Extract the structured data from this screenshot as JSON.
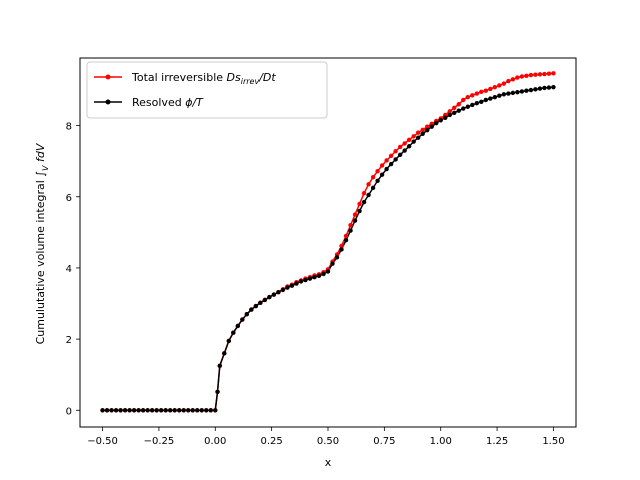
{
  "chart_data": {
    "type": "line",
    "xlabel": "x",
    "ylabel": "Cumulutative volume integral ∫V fdV",
    "ylabel_parts": {
      "main": "Cumulutative volume integral ∫",
      "sub": "V",
      "tail": " fdV"
    },
    "xlim": [
      -0.6,
      1.6
    ],
    "ylim": [
      -0.47,
      9.9
    ],
    "xticks": [
      -0.5,
      -0.25,
      0.0,
      0.25,
      0.5,
      0.75,
      1.0,
      1.25,
      1.5
    ],
    "xtick_labels": [
      "−0.50",
      "−0.25",
      "0.00",
      "0.25",
      "0.50",
      "0.75",
      "1.00",
      "1.25",
      "1.50"
    ],
    "yticks": [
      0,
      2,
      4,
      6,
      8
    ],
    "ytick_labels": [
      "0",
      "2",
      "4",
      "6",
      "8"
    ],
    "grid": false,
    "legend_position": "top-left",
    "series": [
      {
        "name": "Total irreversible Dsirrev/Dt",
        "label_parts": {
          "main": "Total irreversible ",
          "italic1": "Ds",
          "sub": "irrev",
          "italic2": "/Dt"
        },
        "color": "#ff0000",
        "x": [
          -0.5,
          -0.48,
          -0.46,
          -0.44,
          -0.42,
          -0.4,
          -0.38,
          -0.36,
          -0.34,
          -0.32,
          -0.3,
          -0.28,
          -0.26,
          -0.24,
          -0.22,
          -0.2,
          -0.18,
          -0.16,
          -0.14,
          -0.12,
          -0.1,
          -0.08,
          -0.06,
          -0.04,
          -0.02,
          0.0,
          0.01,
          0.02,
          0.04,
          0.06,
          0.08,
          0.1,
          0.12,
          0.14,
          0.16,
          0.18,
          0.2,
          0.22,
          0.24,
          0.26,
          0.28,
          0.3,
          0.32,
          0.34,
          0.36,
          0.38,
          0.4,
          0.42,
          0.44,
          0.46,
          0.48,
          0.5,
          0.52,
          0.54,
          0.56,
          0.58,
          0.6,
          0.62,
          0.64,
          0.66,
          0.68,
          0.7,
          0.72,
          0.74,
          0.76,
          0.78,
          0.8,
          0.82,
          0.84,
          0.86,
          0.88,
          0.9,
          0.92,
          0.94,
          0.96,
          0.98,
          1.0,
          1.02,
          1.04,
          1.06,
          1.08,
          1.1,
          1.12,
          1.14,
          1.16,
          1.18,
          1.2,
          1.22,
          1.24,
          1.26,
          1.28,
          1.3,
          1.32,
          1.34,
          1.36,
          1.38,
          1.4,
          1.42,
          1.44,
          1.46,
          1.48,
          1.5
        ],
        "y": [
          0,
          0,
          0,
          0,
          0,
          0,
          0,
          0,
          0,
          0,
          0,
          0,
          0,
          0,
          0,
          0,
          0,
          0,
          0,
          0,
          0,
          0,
          0,
          0,
          0,
          0,
          0.52,
          1.25,
          1.6,
          1.95,
          2.18,
          2.37,
          2.55,
          2.7,
          2.83,
          2.93,
          3.02,
          3.1,
          3.18,
          3.25,
          3.32,
          3.4,
          3.48,
          3.53,
          3.6,
          3.65,
          3.7,
          3.74,
          3.79,
          3.82,
          3.88,
          3.96,
          4.18,
          4.38,
          4.62,
          4.9,
          5.2,
          5.5,
          5.8,
          6.1,
          6.35,
          6.55,
          6.72,
          6.88,
          7.02,
          7.15,
          7.28,
          7.4,
          7.5,
          7.6,
          7.7,
          7.8,
          7.88,
          7.97,
          8.05,
          8.13,
          8.2,
          8.3,
          8.4,
          8.5,
          8.6,
          8.72,
          8.8,
          8.85,
          8.9,
          8.95,
          8.98,
          9.03,
          9.08,
          9.13,
          9.18,
          9.25,
          9.3,
          9.35,
          9.38,
          9.4,
          9.42,
          9.43,
          9.44,
          9.45,
          9.46,
          9.47
        ]
      },
      {
        "name": "Resolved ϕ/T",
        "label_parts": {
          "main": "Resolved ",
          "italic1": "ϕ/T"
        },
        "color": "#000000",
        "x": [
          -0.5,
          -0.48,
          -0.46,
          -0.44,
          -0.42,
          -0.4,
          -0.38,
          -0.36,
          -0.34,
          -0.32,
          -0.3,
          -0.28,
          -0.26,
          -0.24,
          -0.22,
          -0.2,
          -0.18,
          -0.16,
          -0.14,
          -0.12,
          -0.1,
          -0.08,
          -0.06,
          -0.04,
          -0.02,
          0.0,
          0.01,
          0.02,
          0.04,
          0.06,
          0.08,
          0.1,
          0.12,
          0.14,
          0.16,
          0.18,
          0.2,
          0.22,
          0.24,
          0.26,
          0.28,
          0.3,
          0.32,
          0.34,
          0.36,
          0.38,
          0.4,
          0.42,
          0.44,
          0.46,
          0.48,
          0.5,
          0.52,
          0.54,
          0.56,
          0.58,
          0.6,
          0.62,
          0.64,
          0.66,
          0.68,
          0.7,
          0.72,
          0.74,
          0.76,
          0.78,
          0.8,
          0.82,
          0.84,
          0.86,
          0.88,
          0.9,
          0.92,
          0.94,
          0.96,
          0.98,
          1.0,
          1.02,
          1.04,
          1.06,
          1.08,
          1.1,
          1.12,
          1.14,
          1.16,
          1.18,
          1.2,
          1.22,
          1.24,
          1.26,
          1.28,
          1.3,
          1.32,
          1.34,
          1.36,
          1.38,
          1.4,
          1.42,
          1.44,
          1.46,
          1.48,
          1.5
        ],
        "y": [
          0,
          0,
          0,
          0,
          0,
          0,
          0,
          0,
          0,
          0,
          0,
          0,
          0,
          0,
          0,
          0,
          0,
          0,
          0,
          0,
          0,
          0,
          0,
          0,
          0,
          0,
          0.52,
          1.25,
          1.6,
          1.95,
          2.18,
          2.37,
          2.55,
          2.7,
          2.83,
          2.93,
          3.02,
          3.1,
          3.18,
          3.25,
          3.32,
          3.38,
          3.45,
          3.5,
          3.56,
          3.62,
          3.66,
          3.7,
          3.74,
          3.78,
          3.83,
          3.9,
          4.12,
          4.3,
          4.52,
          4.78,
          5.05,
          5.33,
          5.6,
          5.85,
          6.05,
          6.25,
          6.45,
          6.62,
          6.78,
          6.92,
          7.05,
          7.18,
          7.3,
          7.42,
          7.55,
          7.66,
          7.77,
          7.87,
          7.97,
          8.07,
          8.15,
          8.22,
          8.3,
          8.36,
          8.42,
          8.48,
          8.53,
          8.58,
          8.63,
          8.67,
          8.72,
          8.76,
          8.8,
          8.84,
          8.88,
          8.9,
          8.92,
          8.94,
          8.96,
          8.98,
          9.0,
          9.02,
          9.04,
          9.06,
          9.07,
          9.08
        ]
      }
    ]
  }
}
